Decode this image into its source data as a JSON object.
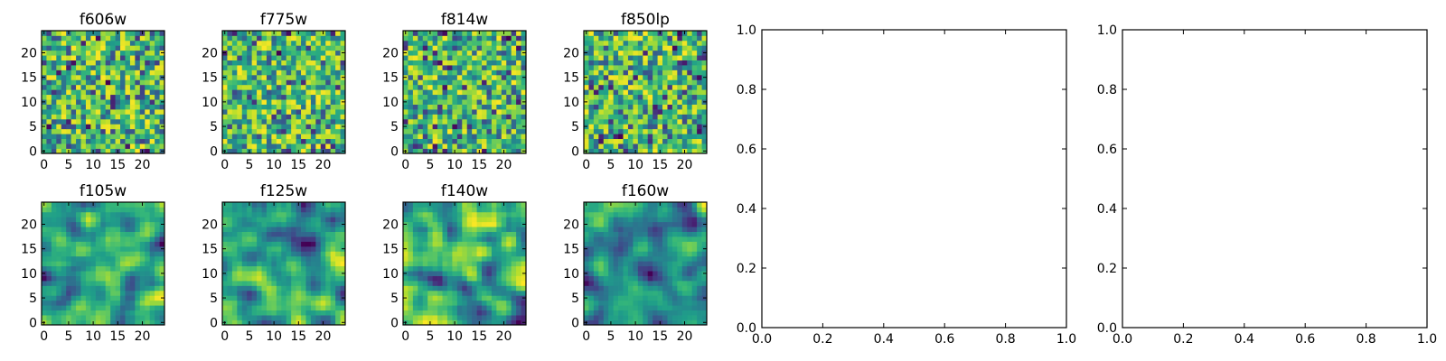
{
  "chart_data": [
    {
      "type": "heatmap",
      "title": "f606w",
      "xticks": [
        "0",
        "5",
        "10",
        "15",
        "20"
      ],
      "yticks": [
        "0",
        "5",
        "10",
        "15",
        "20"
      ],
      "xlim": [
        -0.5,
        24.5
      ],
      "ylim": [
        -0.5,
        24.5
      ],
      "grid": false,
      "colormap": "viridis",
      "grid_size": 25,
      "rows": 25,
      "seed": 606,
      "smooth": false
    },
    {
      "type": "heatmap",
      "title": "f775w",
      "xticks": [
        "0",
        "5",
        "10",
        "15",
        "20"
      ],
      "yticks": [
        "0",
        "5",
        "10",
        "15",
        "20"
      ],
      "xlim": [
        -0.5,
        24.5
      ],
      "ylim": [
        -0.5,
        24.5
      ],
      "grid": false,
      "colormap": "viridis",
      "grid_size": 25,
      "rows": 25,
      "seed": 775,
      "smooth": false
    },
    {
      "type": "heatmap",
      "title": "f814w",
      "xticks": [
        "0",
        "5",
        "10",
        "15",
        "20"
      ],
      "yticks": [
        "0",
        "5",
        "10",
        "15",
        "20"
      ],
      "xlim": [
        -0.5,
        24.5
      ],
      "ylim": [
        -0.5,
        24.5
      ],
      "grid": false,
      "colormap": "viridis",
      "grid_size": 25,
      "rows": 25,
      "seed": 814,
      "smooth": false
    },
    {
      "type": "heatmap",
      "title": "f850lp",
      "xticks": [
        "0",
        "5",
        "10",
        "15",
        "20"
      ],
      "yticks": [
        "0",
        "5",
        "10",
        "15",
        "20"
      ],
      "xlim": [
        -0.5,
        24.5
      ],
      "ylim": [
        -0.5,
        24.5
      ],
      "grid": false,
      "colormap": "viridis",
      "grid_size": 25,
      "rows": 25,
      "seed": 850,
      "smooth": false
    },
    {
      "type": "heatmap",
      "title": "f105w",
      "xticks": [
        "0",
        "5",
        "10",
        "15",
        "20"
      ],
      "yticks": [
        "0",
        "5",
        "10",
        "15",
        "20"
      ],
      "xlim": [
        -0.5,
        24.5
      ],
      "ylim": [
        -0.5,
        24.5
      ],
      "grid": false,
      "colormap": "viridis",
      "grid_size": 25,
      "rows": 25,
      "seed": 105,
      "smooth": true
    },
    {
      "type": "heatmap",
      "title": "f125w",
      "xticks": [
        "0",
        "5",
        "10",
        "15",
        "20"
      ],
      "yticks": [
        "0",
        "5",
        "10",
        "15",
        "20"
      ],
      "xlim": [
        -0.5,
        24.5
      ],
      "ylim": [
        -0.5,
        24.5
      ],
      "grid": false,
      "colormap": "viridis",
      "grid_size": 25,
      "rows": 25,
      "seed": 125,
      "smooth": true
    },
    {
      "type": "heatmap",
      "title": "f140w",
      "xticks": [
        "0",
        "5",
        "10",
        "15",
        "20"
      ],
      "yticks": [
        "0",
        "5",
        "10",
        "15",
        "20"
      ],
      "xlim": [
        -0.5,
        24.5
      ],
      "ylim": [
        -0.5,
        24.5
      ],
      "grid": false,
      "colormap": "viridis",
      "grid_size": 25,
      "rows": 25,
      "seed": 140,
      "smooth": true
    },
    {
      "type": "heatmap",
      "title": "f160w",
      "xticks": [
        "0",
        "5",
        "10",
        "15",
        "20"
      ],
      "yticks": [
        "0",
        "5",
        "10",
        "15",
        "20"
      ],
      "xlim": [
        -0.5,
        24.5
      ],
      "ylim": [
        -0.5,
        24.5
      ],
      "grid": false,
      "colormap": "viridis",
      "grid_size": 25,
      "rows": 25,
      "seed": 160,
      "smooth": true
    },
    {
      "type": "line",
      "title": "",
      "series": [],
      "xlim": [
        0.0,
        1.0
      ],
      "ylim": [
        0.0,
        1.0
      ],
      "xticks": [
        "0.0",
        "0.2",
        "0.4",
        "0.6",
        "0.8",
        "1.0"
      ],
      "yticks": [
        "0.0",
        "0.2",
        "0.4",
        "0.6",
        "0.8",
        "1.0"
      ],
      "grid": false
    },
    {
      "type": "line",
      "title": "",
      "series": [],
      "xlim": [
        0.0,
        1.0
      ],
      "ylim": [
        0.0,
        1.0
      ],
      "xticks": [
        "0.0",
        "0.2",
        "0.4",
        "0.6",
        "0.8",
        "1.0"
      ],
      "yticks": [
        "0.0",
        "0.2",
        "0.4",
        "0.6",
        "0.8",
        "1.0"
      ],
      "grid": false
    }
  ]
}
